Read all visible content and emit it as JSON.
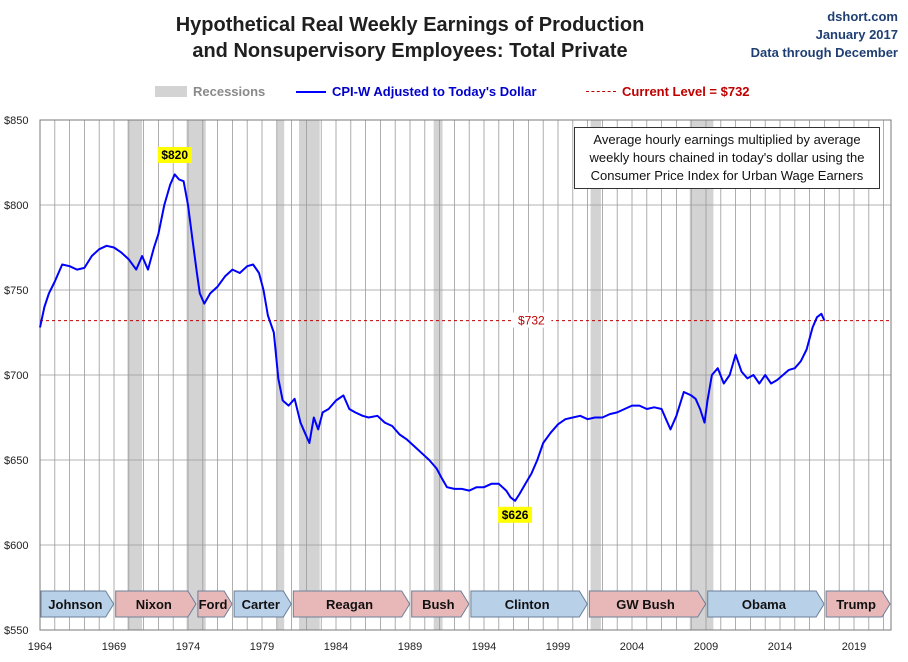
{
  "header": {
    "title_line1": "Hypothetical Real Weekly Earnings of Production",
    "title_line2": "and Nonsupervisory Employees: Total Private",
    "source_site": "dshort.com",
    "source_date": "January 2017",
    "source_note": "Data through December"
  },
  "legend": {
    "recessions": "Recessions",
    "series": "CPI-W Adjusted to Today's Dollar",
    "current": "Current Level = $732"
  },
  "note_text": "Average hourly earnings multiplied by average weekly hours chained in today's dollar using the Consumer Price Index for Urban Wage Earners",
  "colors": {
    "series": "#0000ff",
    "current": "#c00000",
    "recession": "#d3d3d3",
    "callout_bg": "#ffff00",
    "pres_blue": "#b8d0e8",
    "pres_red": "#e8b8b8"
  },
  "chart_data": {
    "type": "line",
    "x_ticks": [
      1964,
      1969,
      1974,
      1979,
      1984,
      1989,
      1994,
      1999,
      2004,
      2009,
      2014,
      2019
    ],
    "x_tick_labels": [
      "1964",
      "1969",
      "1974",
      "1979",
      "1984",
      "1989",
      "1994",
      "1999",
      "2004",
      "2009",
      "2014",
      "2019"
    ],
    "xlim": [
      1964,
      2021.5
    ],
    "y_ticks": [
      550,
      600,
      650,
      700,
      750,
      800,
      850
    ],
    "y_tick_labels": [
      "$550",
      "$600",
      "$650",
      "$700",
      "$750",
      "$800",
      "$850"
    ],
    "ylim": [
      550,
      850
    ],
    "grid": "vertical-yearly and horizontal",
    "series": [
      {
        "name": "CPI-W Adjusted to Today's Dollar",
        "x": [
          1964.0,
          1964.3,
          1964.6,
          1965.0,
          1965.5,
          1966.0,
          1966.5,
          1967.0,
          1967.5,
          1968.0,
          1968.5,
          1969.0,
          1969.5,
          1970.0,
          1970.5,
          1970.9,
          1971.3,
          1971.7,
          1972.0,
          1972.4,
          1972.8,
          1973.1,
          1973.4,
          1973.7,
          1974.0,
          1974.3,
          1974.6,
          1974.8,
          1975.1,
          1975.5,
          1976.0,
          1976.5,
          1977.0,
          1977.5,
          1978.0,
          1978.4,
          1978.8,
          1979.1,
          1979.4,
          1979.8,
          1980.1,
          1980.4,
          1980.8,
          1981.2,
          1981.6,
          1981.9,
          1982.2,
          1982.5,
          1982.8,
          1983.1,
          1983.5,
          1984.0,
          1984.5,
          1984.9,
          1985.3,
          1985.8,
          1986.2,
          1986.8,
          1987.3,
          1987.8,
          1988.3,
          1988.8,
          1989.3,
          1989.8,
          1990.3,
          1990.8,
          1991.1,
          1991.5,
          1992.0,
          1992.5,
          1993.0,
          1993.5,
          1994.0,
          1994.5,
          1995.0,
          1995.5,
          1995.8,
          1996.1,
          1996.4,
          1996.8,
          1997.2,
          1997.6,
          1998.0,
          1998.5,
          1999.0,
          1999.5,
          2000.0,
          2000.5,
          2001.0,
          2001.5,
          2002.0,
          2002.5,
          2003.0,
          2003.5,
          2004.0,
          2004.5,
          2005.0,
          2005.5,
          2006.0,
          2006.3,
          2006.6,
          2007.0,
          2007.5,
          2008.0,
          2008.3,
          2008.6,
          2008.9,
          2009.1,
          2009.4,
          2009.8,
          2010.2,
          2010.6,
          2011.0,
          2011.4,
          2011.8,
          2012.2,
          2012.6,
          2013.0,
          2013.4,
          2013.8,
          2014.2,
          2014.6,
          2015.0,
          2015.4,
          2015.8,
          2016.2,
          2016.5,
          2016.8,
          2017.0
        ],
        "y": [
          728,
          740,
          748,
          755,
          765,
          764,
          762,
          763,
          770,
          774,
          776,
          775,
          772,
          768,
          762,
          770,
          762,
          775,
          783,
          800,
          812,
          818,
          815,
          814,
          800,
          780,
          760,
          748,
          742,
          748,
          752,
          758,
          762,
          760,
          764,
          765,
          760,
          750,
          735,
          725,
          698,
          685,
          682,
          686,
          672,
          666,
          660,
          675,
          668,
          678,
          680,
          685,
          688,
          680,
          678,
          676,
          675,
          676,
          672,
          670,
          665,
          662,
          658,
          654,
          650,
          645,
          640,
          634,
          633,
          633,
          632,
          634,
          634,
          636,
          636,
          632,
          628,
          626,
          630,
          636,
          642,
          650,
          660,
          666,
          671,
          674,
          675,
          676,
          674,
          675,
          675,
          677,
          678,
          680,
          682,
          682,
          680,
          681,
          680,
          674,
          668,
          676,
          690,
          688,
          686,
          680,
          672,
          685,
          700,
          704,
          695,
          700,
          712,
          702,
          698,
          700,
          695,
          700,
          695,
          697,
          700,
          703,
          704,
          708,
          715,
          728,
          734,
          736,
          732
        ]
      }
    ],
    "current_level": {
      "value": 732,
      "label": "$732"
    },
    "peak_label": {
      "x": 1973.1,
      "y": 820,
      "text": "$820"
    },
    "trough_label": {
      "x": 1996.1,
      "y": 626,
      "text": "$626"
    },
    "recessions": [
      [
        1969.9,
        1970.9
      ],
      [
        1973.9,
        1975.2
      ],
      [
        1980.0,
        1980.5
      ],
      [
        1981.5,
        1982.9
      ],
      [
        1990.6,
        1991.2
      ],
      [
        2001.2,
        2001.9
      ],
      [
        2007.9,
        2009.5
      ]
    ],
    "presidents": [
      {
        "name": "Johnson",
        "start": 1964.0,
        "end": 1969.05,
        "party": "D"
      },
      {
        "name": "Nixon",
        "start": 1969.05,
        "end": 1974.6,
        "party": "R"
      },
      {
        "name": "Ford",
        "start": 1974.6,
        "end": 1977.05,
        "party": "R"
      },
      {
        "name": "Carter",
        "start": 1977.05,
        "end": 1981.05,
        "party": "D"
      },
      {
        "name": "Reagan",
        "start": 1981.05,
        "end": 1989.05,
        "party": "R"
      },
      {
        "name": "Bush",
        "start": 1989.05,
        "end": 1993.05,
        "party": "R"
      },
      {
        "name": "Clinton",
        "start": 1993.05,
        "end": 2001.05,
        "party": "D"
      },
      {
        "name": "GW Bush",
        "start": 2001.05,
        "end": 2009.05,
        "party": "R"
      },
      {
        "name": "Obama",
        "start": 2009.05,
        "end": 2017.05,
        "party": "D"
      },
      {
        "name": "Trump",
        "start": 2017.05,
        "end": 2021.5,
        "party": "R"
      }
    ]
  }
}
